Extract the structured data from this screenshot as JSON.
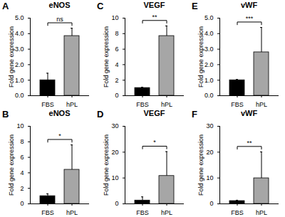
{
  "chart_data": [
    {
      "type": "bar",
      "panel": "A",
      "title": "eNOS",
      "y_label": "Fold gene expression",
      "categories": [
        "FBS",
        "hPL"
      ],
      "values": [
        1.0,
        3.85
      ],
      "errors": [
        0.45,
        0.5
      ],
      "colors": [
        "#000000",
        "#a6a6a6"
      ],
      "ylim": [
        0,
        5
      ],
      "yticks": [
        0,
        1,
        2,
        3,
        4,
        5
      ],
      "annotation": "ns"
    },
    {
      "type": "bar",
      "panel": "B",
      "title": "eNOS",
      "y_label": "Fold gene expression",
      "categories": [
        "FBS",
        "hPL"
      ],
      "values": [
        1.0,
        4.4
      ],
      "errors": [
        0.3,
        3.2
      ],
      "colors": [
        "#000000",
        "#a6a6a6"
      ],
      "ylim": [
        0,
        10
      ],
      "yticks": [
        0,
        2,
        4,
        6,
        8,
        10
      ],
      "annotation": "*"
    },
    {
      "type": "bar",
      "panel": "C",
      "title": "VEGF",
      "y_label": "Fold gene expression",
      "categories": [
        "FBS",
        "hPL"
      ],
      "values": [
        1.0,
        7.7
      ],
      "errors": [
        0.1,
        1.3
      ],
      "colors": [
        "#000000",
        "#a6a6a6"
      ],
      "ylim": [
        0,
        10
      ],
      "yticks": [
        0,
        2,
        4,
        6,
        8,
        10
      ],
      "annotation": "**"
    },
    {
      "type": "bar",
      "panel": "D",
      "title": "VEGF",
      "y_label": "Fold gene expression",
      "categories": [
        "FBS",
        "hPL"
      ],
      "values": [
        1.3,
        10.8
      ],
      "errors": [
        1.4,
        9.4
      ],
      "colors": [
        "#000000",
        "#a6a6a6"
      ],
      "ylim": [
        0,
        30
      ],
      "yticks": [
        0,
        10,
        20,
        30
      ],
      "annotation": "*"
    },
    {
      "type": "bar",
      "panel": "E",
      "title": "vWF",
      "y_label": "Fold gene expression",
      "categories": [
        "FBS",
        "hPL"
      ],
      "values": [
        1.0,
        2.8
      ],
      "errors": [
        0.05,
        1.6
      ],
      "colors": [
        "#000000",
        "#a6a6a6"
      ],
      "ylim": [
        0,
        5
      ],
      "yticks": [
        0,
        1,
        2,
        3,
        4,
        5
      ],
      "annotation": "***"
    },
    {
      "type": "bar",
      "panel": "F",
      "title": "vWF",
      "y_label": "Fold gene expression",
      "categories": [
        "FBS",
        "hPL"
      ],
      "values": [
        1.1,
        9.9
      ],
      "errors": [
        0.3,
        10.2
      ],
      "colors": [
        "#000000",
        "#a6a6a6"
      ],
      "ylim": [
        0,
        30
      ],
      "yticks": [
        0,
        10,
        20,
        30
      ],
      "annotation": "**"
    }
  ]
}
